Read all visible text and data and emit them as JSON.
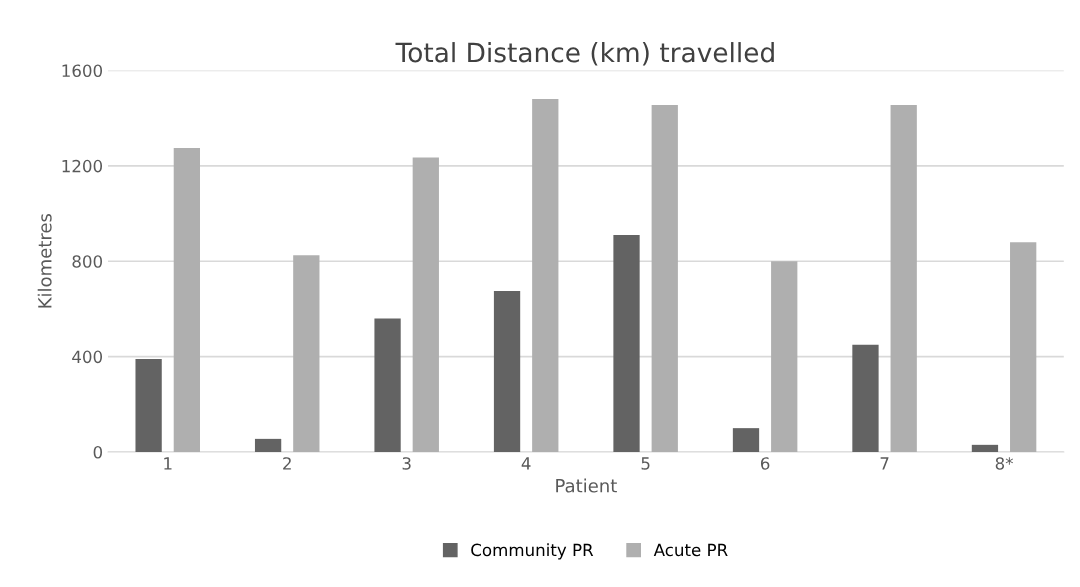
{
  "chart_data": {
    "type": "bar",
    "title": "Total Distance (km) travelled",
    "xlabel": "Patient",
    "ylabel": "Kilometres",
    "categories": [
      "1",
      "2",
      "3",
      "4",
      "5",
      "6",
      "7",
      "8*"
    ],
    "series": [
      {
        "name": "Community PR",
        "color": "#636363",
        "values": [
          390,
          55,
          560,
          675,
          910,
          100,
          450,
          30
        ]
      },
      {
        "name": "Acute PR",
        "color": "#afafaf",
        "values": [
          1275,
          825,
          1235,
          1480,
          1455,
          800,
          1455,
          880
        ]
      }
    ],
    "ylim": [
      0,
      1600
    ],
    "yticks": [
      0,
      400,
      800,
      1200,
      1600
    ],
    "grid": "y",
    "legend": "bottom"
  }
}
